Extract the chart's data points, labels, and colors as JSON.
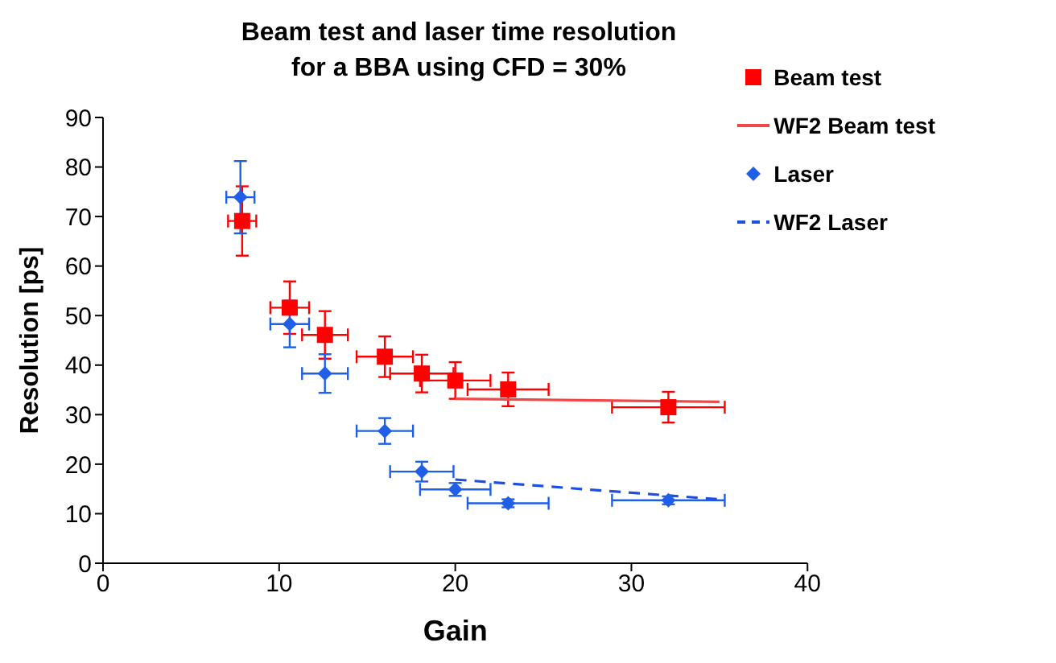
{
  "chart_data": {
    "type": "scatter",
    "title": "Beam test and laser time resolution\nfor a BBA using CFD = 30%",
    "xlabel": "Gain",
    "ylabel": "Resolution [ps]",
    "xlim": [
      0,
      40
    ],
    "xticks": [
      0,
      10,
      20,
      30,
      40
    ],
    "ylim": [
      0,
      90
    ],
    "yticks": [
      0,
      10,
      20,
      30,
      40,
      50,
      60,
      70,
      80,
      90
    ],
    "legend": "top right",
    "series": [
      {
        "name": "Beam test",
        "marker": "square",
        "color": "#ff0000",
        "x": [
          7.9,
          10.6,
          12.6,
          16.0,
          18.1,
          20.0,
          23.0,
          32.1
        ],
        "values": [
          69.1,
          51.6,
          46.1,
          41.7,
          38.3,
          36.9,
          35.1,
          31.5
        ],
        "errors": [
          7,
          5.3,
          4.8,
          4.1,
          3.8,
          3.7,
          3.4,
          3.1
        ],
        "xerrors": [
          0.8,
          1.1,
          1.3,
          1.6,
          1.8,
          2.0,
          2.3,
          3.2
        ]
      },
      {
        "name": "WF2 Beam test",
        "type": "line",
        "marker": "none",
        "line_style": "solid",
        "color": "#f04848",
        "x": [
          20,
          35
        ],
        "values": [
          33.2,
          32.6
        ]
      },
      {
        "name": "Laser",
        "marker": "diamond",
        "color": "#1f5fe8",
        "x": [
          7.8,
          10.6,
          12.6,
          16.0,
          18.1,
          20.0,
          23.0,
          32.1
        ],
        "values": [
          73.9,
          48.3,
          38.3,
          26.7,
          18.5,
          14.9,
          12.1,
          12.7
        ],
        "errors": [
          7.3,
          4.7,
          3.9,
          2.6,
          2.0,
          1.3,
          0.8,
          0.8
        ],
        "xerrors": [
          0.8,
          1.1,
          1.3,
          1.6,
          1.8,
          2.0,
          2.3,
          3.2
        ]
      },
      {
        "name": "WF2 Laser",
        "type": "line",
        "marker": "none",
        "line_style": "dashed",
        "color": "#1f4fe0",
        "x": [
          20,
          35
        ],
        "values": [
          16.9,
          12.9
        ]
      }
    ]
  }
}
